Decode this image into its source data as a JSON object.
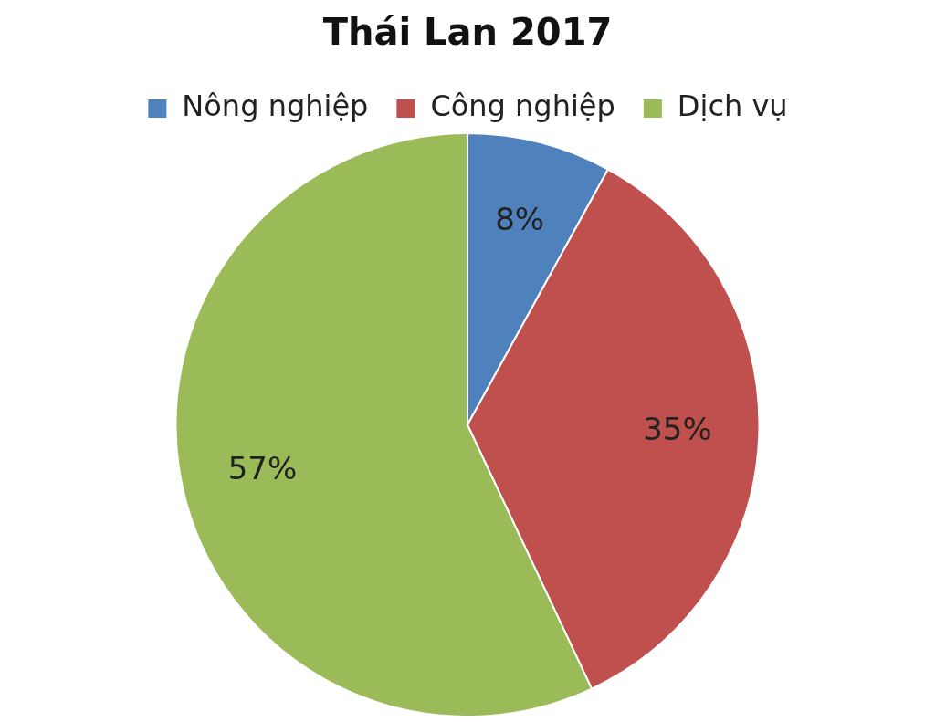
{
  "chart_data": {
    "type": "pie",
    "title": "Thái Lan 2017",
    "categories": [
      "Nông nghiệp",
      "Công nghiệp",
      "Dịch vụ"
    ],
    "values": [
      8,
      35,
      57
    ],
    "colors": [
      "#4f81bd",
      "#c0504d",
      "#9bbb59"
    ],
    "value_labels": [
      "8%",
      "35%",
      "57%"
    ],
    "legend": "top"
  }
}
